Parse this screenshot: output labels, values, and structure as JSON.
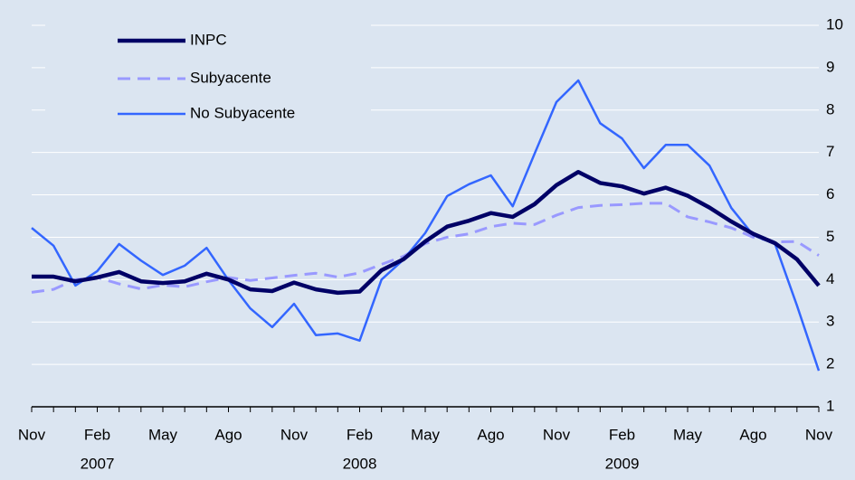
{
  "chart_data": {
    "type": "line",
    "categories": [
      "Nov",
      null,
      null,
      "Feb",
      null,
      null,
      "May",
      null,
      null,
      "Ago",
      null,
      null,
      "Nov",
      null,
      null,
      "Feb",
      null,
      null,
      "May",
      null,
      null,
      "Ago",
      null,
      null,
      "Nov",
      null,
      null,
      "Feb",
      null,
      null,
      "May",
      null,
      null,
      "Ago",
      null,
      null,
      "Nov"
    ],
    "years": [
      "2007",
      "2008",
      "2009"
    ],
    "ylim": [
      1,
      10
    ],
    "yticks": [
      1,
      2,
      3,
      4,
      5,
      6,
      7,
      8,
      9,
      10
    ],
    "grid": true,
    "series": [
      {
        "name": "INPC",
        "color": "#000066",
        "style": "solid",
        "values": [
          4.07,
          4.07,
          3.96,
          4.05,
          4.18,
          3.96,
          3.92,
          3.96,
          4.14,
          4.0,
          3.77,
          3.73,
          3.93,
          3.77,
          3.69,
          3.72,
          4.22,
          4.48,
          4.9,
          5.25,
          5.39,
          5.57,
          5.48,
          5.78,
          6.23,
          6.54,
          6.28,
          6.2,
          6.03,
          6.17,
          5.98,
          5.7,
          5.37,
          5.08,
          4.86,
          4.48,
          3.86
        ]
      },
      {
        "name": "Subyacente",
        "color": "#9999ff",
        "style": "dashed",
        "values": [
          3.7,
          3.77,
          4.0,
          4.05,
          3.9,
          3.78,
          3.87,
          3.83,
          3.95,
          4.05,
          3.98,
          4.04,
          4.1,
          4.15,
          4.06,
          4.16,
          4.36,
          4.55,
          4.85,
          5.0,
          5.08,
          5.25,
          5.33,
          5.3,
          5.52,
          5.7,
          5.75,
          5.77,
          5.8,
          5.8,
          5.48,
          5.36,
          5.22,
          5.0,
          4.89,
          4.9,
          4.57
        ]
      },
      {
        "name": "No Subyacente",
        "color": "#3366ff",
        "style": "solid",
        "values": [
          5.22,
          4.8,
          3.86,
          4.2,
          4.84,
          4.45,
          4.11,
          4.33,
          4.75,
          3.99,
          3.32,
          2.88,
          3.43,
          2.69,
          2.73,
          2.56,
          4.0,
          4.47,
          5.1,
          5.97,
          6.25,
          6.46,
          5.73,
          6.97,
          8.19,
          8.7,
          7.69,
          7.33,
          6.63,
          7.18,
          7.18,
          6.69,
          5.69,
          5.05,
          4.84,
          3.39,
          1.85
        ]
      }
    ]
  }
}
